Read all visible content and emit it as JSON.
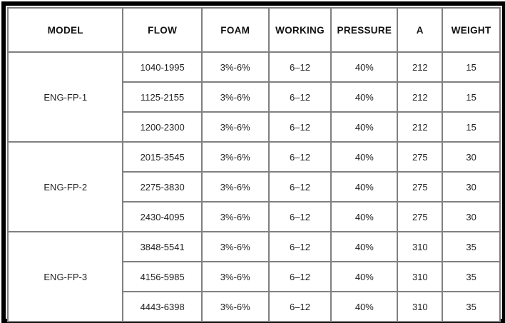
{
  "table": {
    "headers": [
      "MODEL",
      "FLOW",
      "FOAM",
      "WORKING",
      "PRESSURE",
      "A",
      "WEIGHT"
    ],
    "groups": [
      {
        "model": "ENG-FP-1",
        "rows": [
          [
            "1040-1995",
            "3%-6%",
            "6–12",
            "40%",
            "212",
            "15"
          ],
          [
            "1125-2155",
            "3%-6%",
            "6–12",
            "40%",
            "212",
            "15"
          ],
          [
            "1200-2300",
            "3%-6%",
            "6–12",
            "40%",
            "212",
            "15"
          ]
        ]
      },
      {
        "model": "ENG-FP-2",
        "rows": [
          [
            "2015-3545",
            "3%-6%",
            "6–12",
            "40%",
            "275",
            "30"
          ],
          [
            "2275-3830",
            "3%-6%",
            "6–12",
            "40%",
            "275",
            "30"
          ],
          [
            "2430-4095",
            "3%-6%",
            "6–12",
            "40%",
            "275",
            "30"
          ]
        ]
      },
      {
        "model": "ENG-FP-3",
        "rows": [
          [
            "3848-5541",
            "3%-6%",
            "6–12",
            "40%",
            "310",
            "35"
          ],
          [
            "4156-5985",
            "3%-6%",
            "6–12",
            "40%",
            "310",
            "35"
          ],
          [
            "4443-6398",
            "3%-6%",
            "6–12",
            "40%",
            "310",
            "35"
          ]
        ]
      }
    ],
    "colors": {
      "frame": "#000000",
      "cell_border": "#808080",
      "text": "#1f1f1f",
      "background": "#ffffff"
    }
  }
}
